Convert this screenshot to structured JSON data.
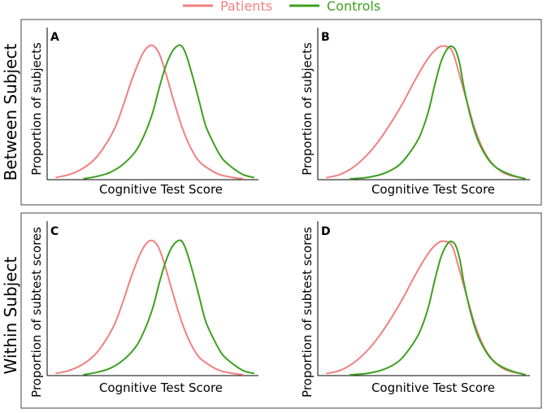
{
  "legend": {
    "items": [
      {
        "label": "Patients",
        "color": "#f08080"
      },
      {
        "label": "Controls",
        "color": "#3ca01e"
      }
    ]
  },
  "rows": [
    {
      "label": "Between Subject"
    },
    {
      "label": "Within Subject"
    }
  ],
  "colors": {
    "patients": "#f08080",
    "controls": "#3ca01e",
    "frame": "#444444",
    "axis": "#000000"
  },
  "chart_data": [
    {
      "type": "line",
      "panel": "A",
      "xlabel": "Cognitive Test Score",
      "ylabel": "Proportion of subjects",
      "xticks": "none",
      "yticks": "none",
      "series": [
        {
          "name": "Patients",
          "x": [
            0.04,
            0.1,
            0.16,
            0.22,
            0.27,
            0.32,
            0.36,
            0.4,
            0.44,
            0.47,
            0.5,
            0.53,
            0.56,
            0.6,
            0.64,
            0.68,
            0.72,
            0.77,
            0.82,
            0.88,
            0.93
          ],
          "y": [
            0.01,
            0.03,
            0.07,
            0.14,
            0.24,
            0.38,
            0.55,
            0.74,
            0.9,
            0.98,
            1.0,
            0.94,
            0.8,
            0.58,
            0.38,
            0.23,
            0.13,
            0.07,
            0.03,
            0.01,
            0.0
          ]
        },
        {
          "name": "Controls",
          "x": [
            0.17,
            0.24,
            0.3,
            0.36,
            0.42,
            0.46,
            0.5,
            0.53,
            0.56,
            0.59,
            0.62,
            0.64,
            0.66,
            0.69,
            0.72,
            0.75,
            0.79,
            0.83,
            0.88,
            0.93,
            0.98
          ],
          "y": [
            0.0,
            0.02,
            0.05,
            0.11,
            0.21,
            0.33,
            0.5,
            0.68,
            0.84,
            0.95,
            1.0,
            0.99,
            0.92,
            0.76,
            0.58,
            0.4,
            0.26,
            0.15,
            0.08,
            0.03,
            0.01
          ]
        }
      ]
    },
    {
      "type": "line",
      "panel": "B",
      "xlabel": "Cognitive Test Score",
      "ylabel": "Proportion of subjects",
      "xticks": "none",
      "yticks": "none",
      "series": [
        {
          "name": "Patients",
          "x": [
            0.04,
            0.1,
            0.16,
            0.22,
            0.28,
            0.34,
            0.4,
            0.45,
            0.5,
            0.54,
            0.58,
            0.62,
            0.64,
            0.66,
            0.7,
            0.74,
            0.78,
            0.82,
            0.87,
            0.92,
            0.96
          ],
          "y": [
            0.01,
            0.03,
            0.08,
            0.16,
            0.27,
            0.41,
            0.57,
            0.72,
            0.86,
            0.95,
            1.0,
            0.99,
            0.94,
            0.83,
            0.6,
            0.38,
            0.22,
            0.12,
            0.05,
            0.02,
            0.01
          ]
        },
        {
          "name": "Controls",
          "x": [
            0.15,
            0.23,
            0.31,
            0.38,
            0.43,
            0.48,
            0.52,
            0.55,
            0.58,
            0.61,
            0.63,
            0.65,
            0.67,
            0.69,
            0.72,
            0.75,
            0.79,
            0.83,
            0.88,
            0.93,
            0.98
          ],
          "y": [
            0.0,
            0.01,
            0.04,
            0.1,
            0.19,
            0.32,
            0.5,
            0.7,
            0.88,
            0.98,
            1.0,
            0.97,
            0.86,
            0.68,
            0.47,
            0.31,
            0.18,
            0.1,
            0.05,
            0.02,
            0.0
          ]
        }
      ]
    },
    {
      "type": "line",
      "panel": "C",
      "xlabel": "Cognitive Test Score",
      "ylabel": "Proportion of subtest scores",
      "xticks": "none",
      "yticks": "none",
      "series": [
        {
          "name": "Patients",
          "x": [
            0.04,
            0.1,
            0.16,
            0.22,
            0.27,
            0.32,
            0.36,
            0.4,
            0.44,
            0.47,
            0.5,
            0.53,
            0.56,
            0.6,
            0.64,
            0.68,
            0.72,
            0.77,
            0.82,
            0.88,
            0.93
          ],
          "y": [
            0.01,
            0.03,
            0.07,
            0.14,
            0.24,
            0.38,
            0.55,
            0.74,
            0.9,
            0.98,
            1.0,
            0.94,
            0.8,
            0.58,
            0.38,
            0.23,
            0.13,
            0.07,
            0.03,
            0.01,
            0.0
          ]
        },
        {
          "name": "Controls",
          "x": [
            0.17,
            0.24,
            0.3,
            0.36,
            0.42,
            0.46,
            0.5,
            0.53,
            0.56,
            0.59,
            0.62,
            0.64,
            0.66,
            0.69,
            0.72,
            0.75,
            0.79,
            0.83,
            0.88,
            0.93,
            0.98
          ],
          "y": [
            0.0,
            0.02,
            0.05,
            0.11,
            0.21,
            0.33,
            0.5,
            0.68,
            0.84,
            0.95,
            1.0,
            0.99,
            0.92,
            0.76,
            0.58,
            0.4,
            0.26,
            0.15,
            0.08,
            0.03,
            0.01
          ]
        }
      ]
    },
    {
      "type": "line",
      "panel": "D",
      "xlabel": "Cognitive Test Score",
      "ylabel": "Proportion of subtest scores",
      "xticks": "none",
      "yticks": "none",
      "series": [
        {
          "name": "Patients",
          "x": [
            0.04,
            0.1,
            0.16,
            0.22,
            0.28,
            0.34,
            0.4,
            0.45,
            0.5,
            0.54,
            0.58,
            0.62,
            0.64,
            0.66,
            0.7,
            0.74,
            0.78,
            0.82,
            0.87,
            0.92,
            0.96
          ],
          "y": [
            0.01,
            0.03,
            0.08,
            0.16,
            0.27,
            0.41,
            0.57,
            0.72,
            0.86,
            0.95,
            1.0,
            0.99,
            0.94,
            0.83,
            0.6,
            0.38,
            0.22,
            0.12,
            0.05,
            0.02,
            0.01
          ]
        },
        {
          "name": "Controls",
          "x": [
            0.15,
            0.23,
            0.31,
            0.38,
            0.43,
            0.48,
            0.52,
            0.55,
            0.58,
            0.61,
            0.63,
            0.65,
            0.67,
            0.69,
            0.72,
            0.75,
            0.79,
            0.83,
            0.88,
            0.93,
            0.98
          ],
          "y": [
            0.0,
            0.01,
            0.04,
            0.1,
            0.19,
            0.32,
            0.5,
            0.7,
            0.88,
            0.98,
            1.0,
            0.97,
            0.86,
            0.68,
            0.47,
            0.31,
            0.18,
            0.1,
            0.05,
            0.02,
            0.0
          ]
        }
      ]
    }
  ]
}
